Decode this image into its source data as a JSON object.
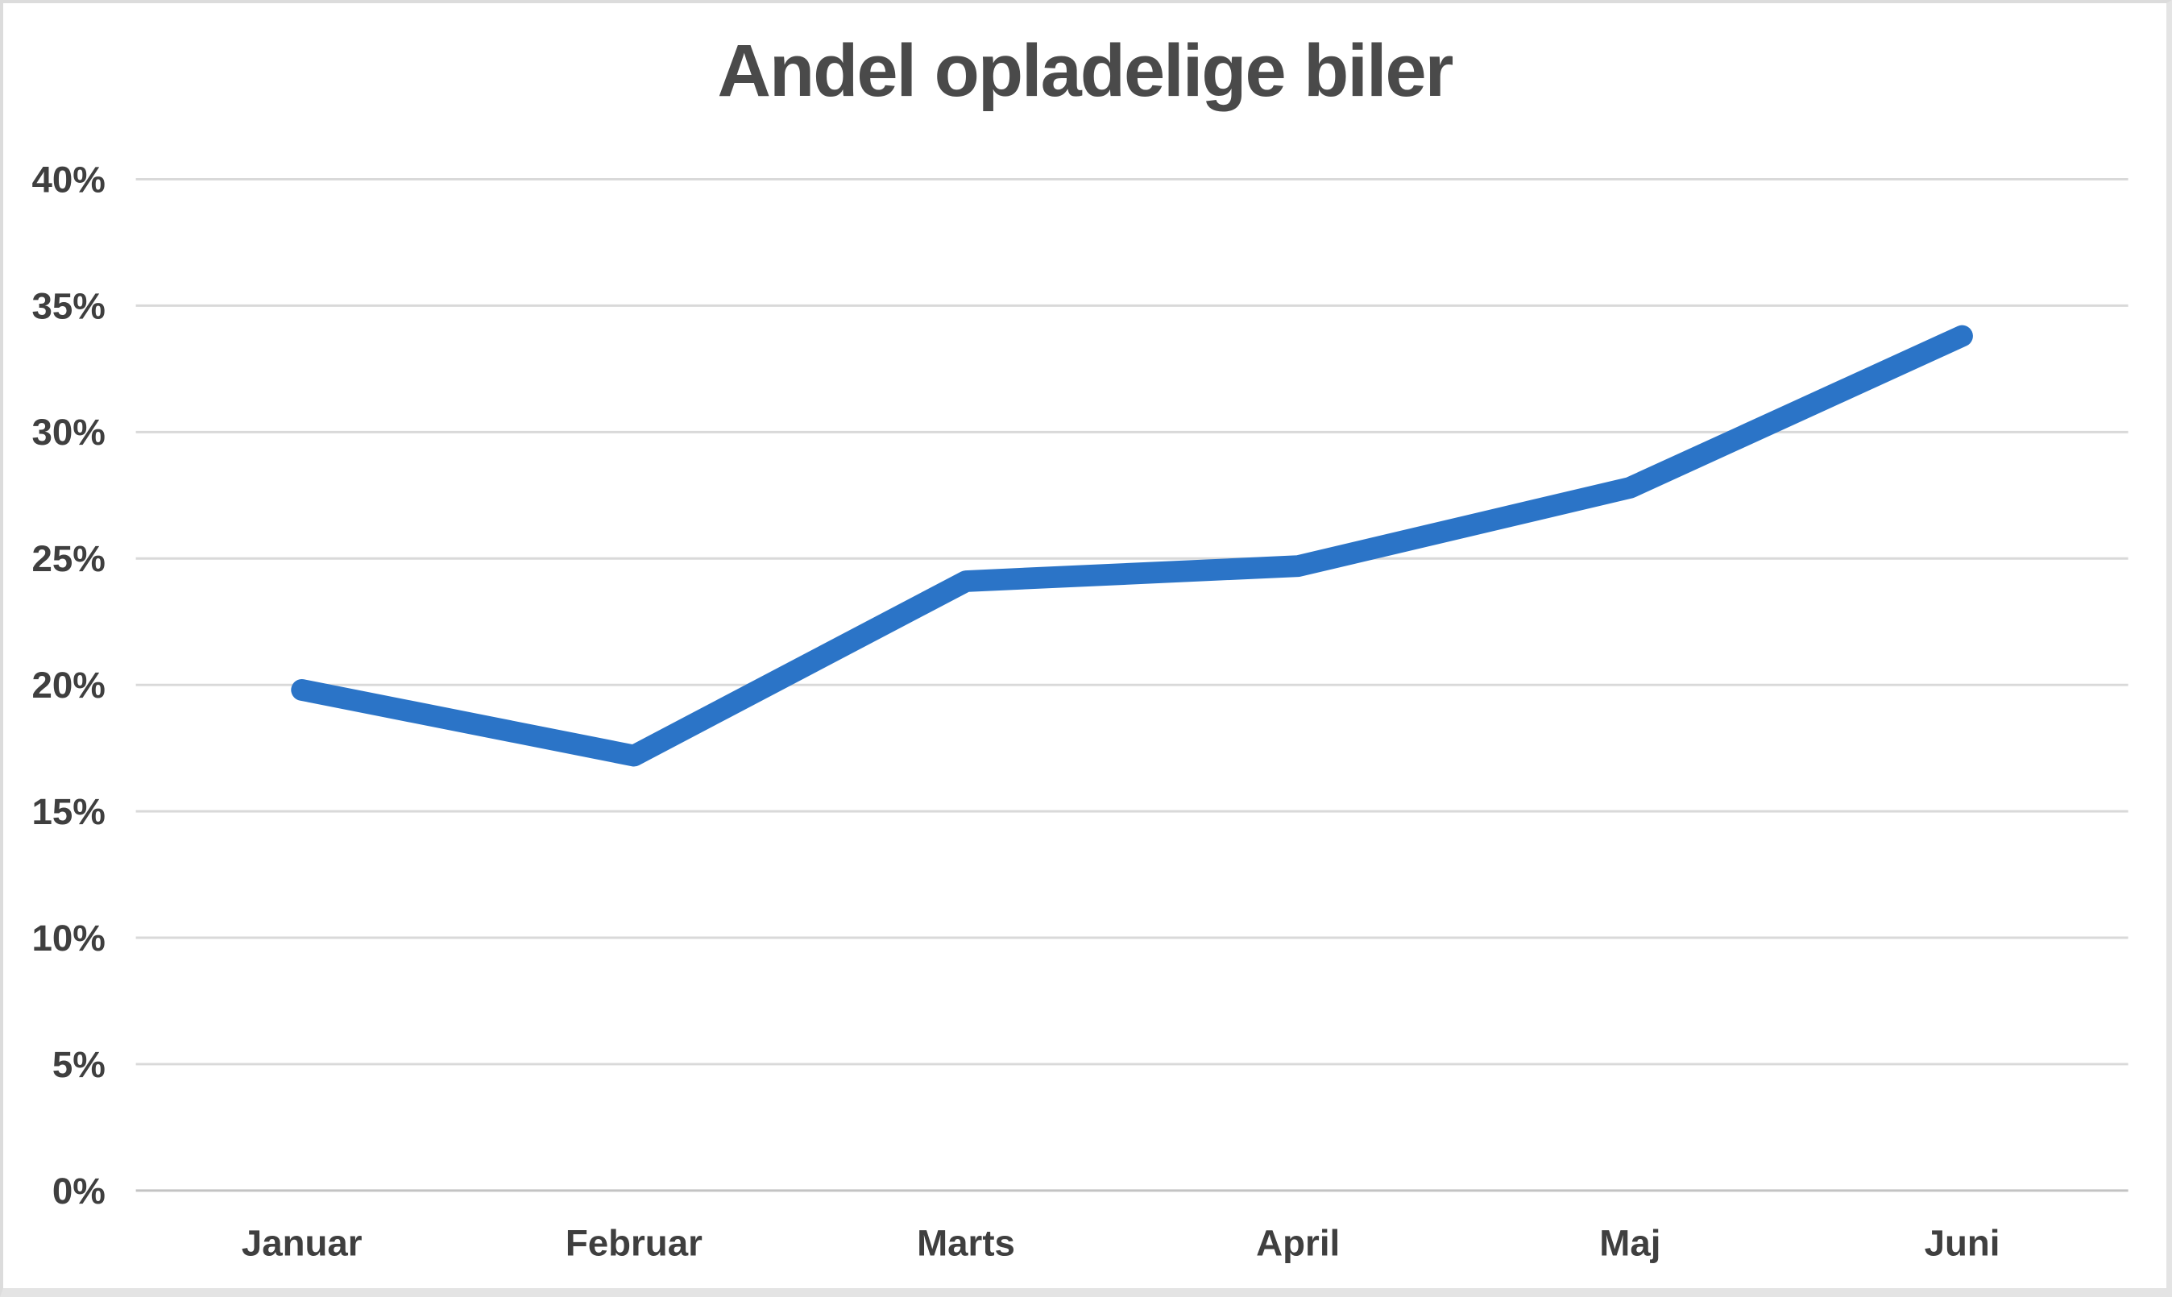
{
  "page": {
    "background": "#ffffff",
    "border_color": "#dcdcdc"
  },
  "chart_data": {
    "type": "line",
    "title": "Andel opladelige biler",
    "categories": [
      "Januar",
      "Februar",
      "Marts",
      "April",
      "Maj",
      "Juni"
    ],
    "series": [
      {
        "name": "Andel opladelige biler",
        "values": [
          19.8,
          17.2,
          24.1,
          24.7,
          27.8,
          33.8
        ]
      }
    ],
    "xlabel": "",
    "ylabel": "",
    "ylim": [
      0,
      40
    ],
    "ytick_step": 5,
    "ytick_labels": [
      "0%",
      "5%",
      "10%",
      "15%",
      "20%",
      "25%",
      "30%",
      "35%",
      "40%"
    ],
    "grid": true,
    "legend": false,
    "colors": {
      "line": "#2b74c7",
      "title_text": "#4a4a4a",
      "axis_label_text": "#3f3f3f",
      "gridline": "#d9d9d9",
      "axis_line": "#c3c3c3"
    }
  }
}
